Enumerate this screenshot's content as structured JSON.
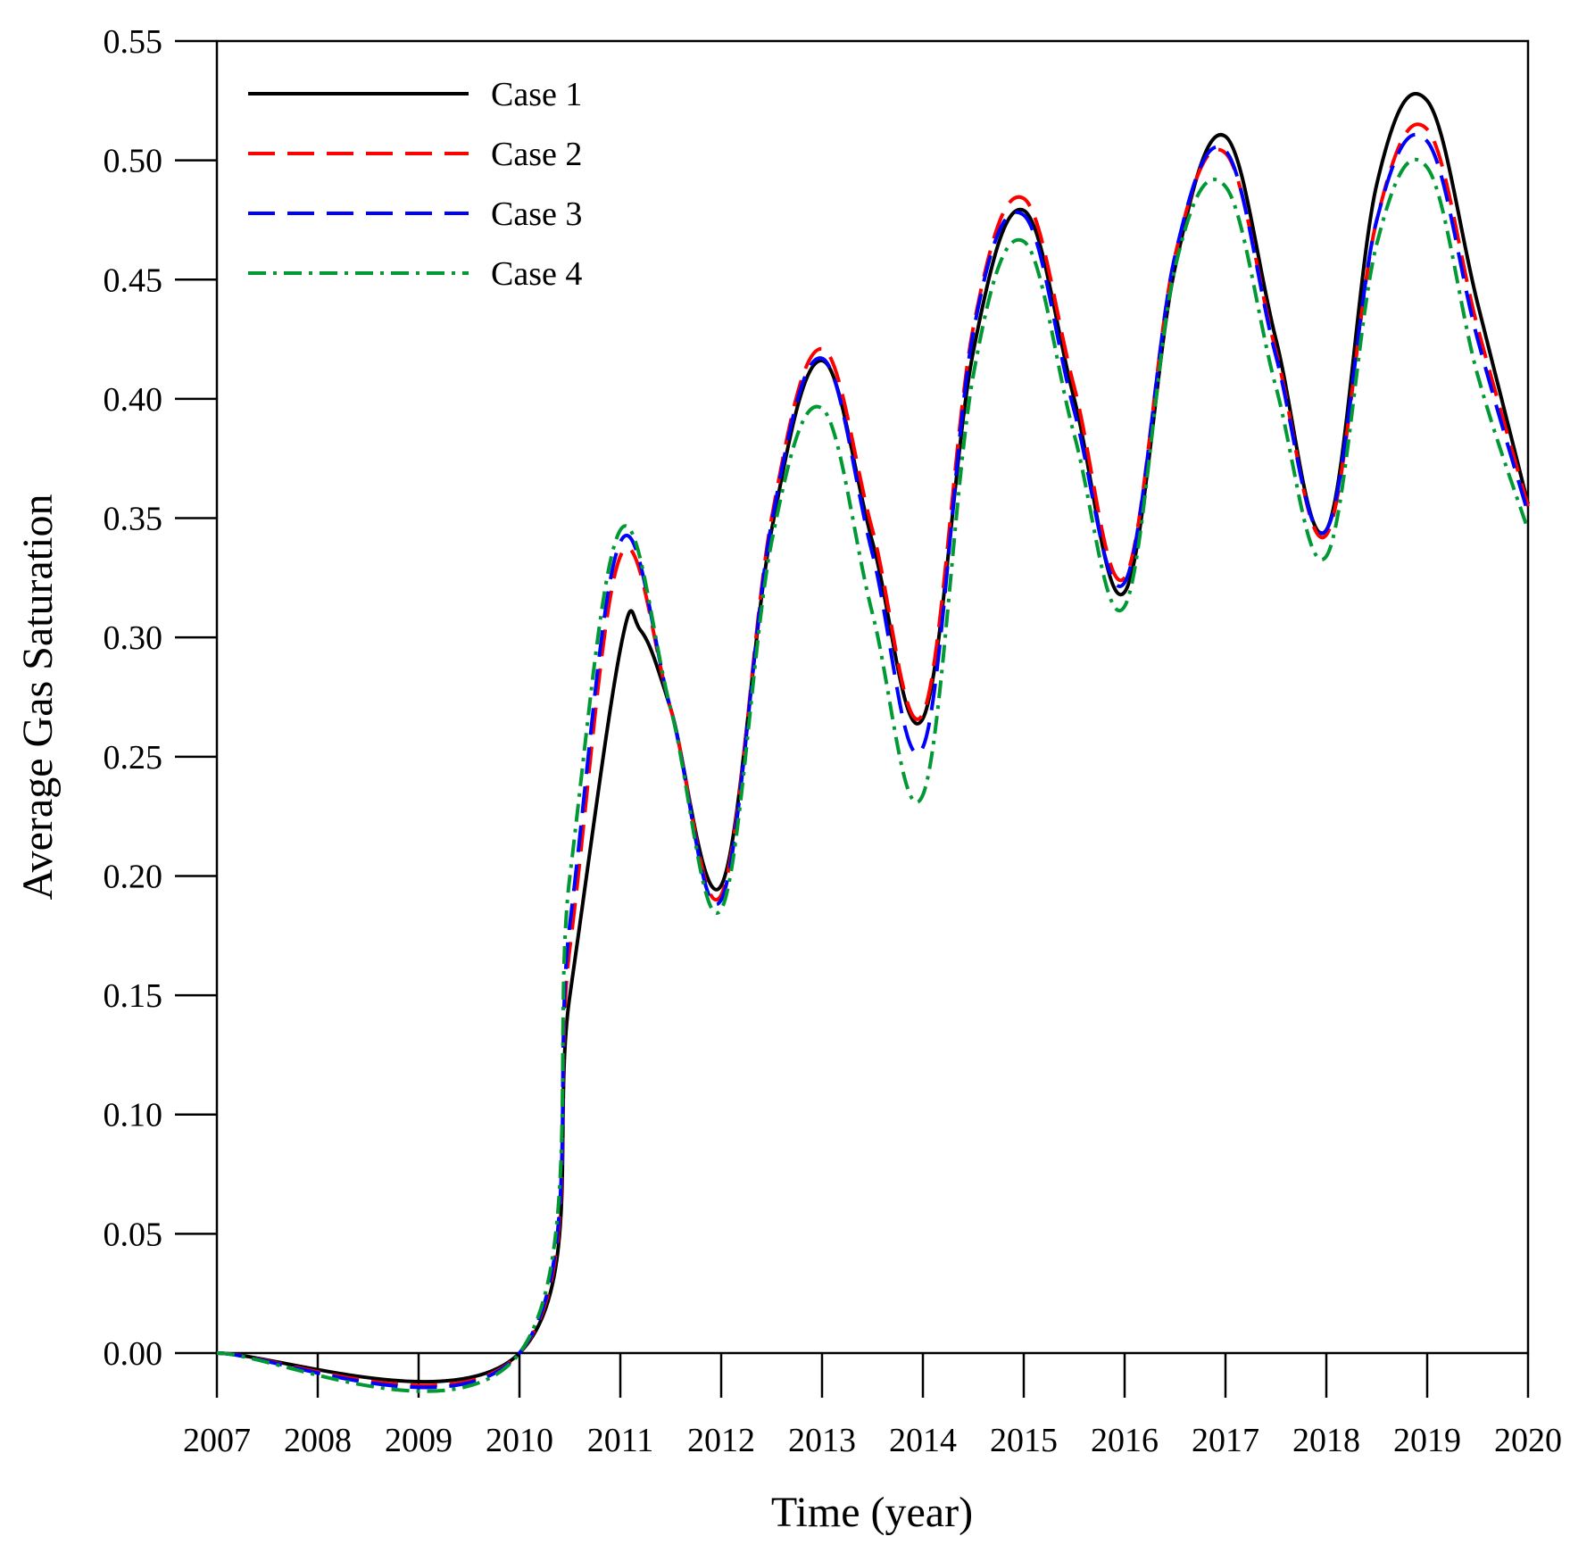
{
  "chart_data": {
    "type": "line",
    "title": "",
    "xlabel": "Time (year)",
    "ylabel": "Average Gas Saturation",
    "xlim": [
      2007,
      2020
    ],
    "ylim": [
      0,
      0.55
    ],
    "xticks": [
      "2007",
      "2008",
      "2009",
      "2010",
      "2011",
      "2012",
      "2013",
      "2014",
      "2015",
      "2016",
      "2017",
      "2018",
      "2019",
      "2020"
    ],
    "yticks": [
      "0.00",
      "0.05",
      "0.10",
      "0.15",
      "0.20",
      "0.25",
      "0.30",
      "0.35",
      "0.40",
      "0.45",
      "0.50",
      "0.55"
    ],
    "grid": false,
    "legend_position": "top-left",
    "series": [
      {
        "name": "Case 1",
        "color": "#000000",
        "dash": "solid",
        "x": [
          2007,
          2010,
          2010.5,
          2011,
          2011.2,
          2011.5,
          2012,
          2012.5,
          2013,
          2013.5,
          2014,
          2014.5,
          2015,
          2015.5,
          2016,
          2016.5,
          2017,
          2017.5,
          2018,
          2018.5,
          2019,
          2019.5,
          2020
        ],
        "y": [
          0,
          0,
          0.15,
          0.295,
          0.303,
          0.27,
          0.196,
          0.345,
          0.416,
          0.34,
          0.266,
          0.42,
          0.479,
          0.4,
          0.319,
          0.455,
          0.51,
          0.425,
          0.345,
          0.49,
          0.525,
          0.44,
          0.356
        ]
      },
      {
        "name": "Case 2",
        "color": "#ff0000",
        "dash": "long-dash",
        "x": [
          2007,
          2010,
          2010.5,
          2011,
          2011.5,
          2012,
          2012.5,
          2013,
          2013.5,
          2014,
          2014.5,
          2015,
          2015.5,
          2016,
          2016.5,
          2017,
          2017.5,
          2018,
          2018.5,
          2019,
          2019.5,
          2020
        ],
        "y": [
          0,
          0,
          0.17,
          0.334,
          0.27,
          0.192,
          0.35,
          0.421,
          0.345,
          0.268,
          0.43,
          0.484,
          0.405,
          0.325,
          0.46,
          0.503,
          0.42,
          0.343,
          0.475,
          0.513,
          0.43,
          0.355
        ]
      },
      {
        "name": "Case 3",
        "color": "#0000ff",
        "dash": "long-dash",
        "x": [
          2007,
          2010,
          2010.5,
          2011,
          2011.5,
          2012,
          2012.5,
          2013,
          2013.5,
          2014,
          2014.5,
          2015,
          2015.5,
          2016,
          2016.5,
          2017,
          2017.5,
          2018,
          2018.5,
          2019,
          2019.5,
          2020
        ],
        "y": [
          0,
          0,
          0.18,
          0.34,
          0.27,
          0.19,
          0.348,
          0.417,
          0.335,
          0.254,
          0.428,
          0.477,
          0.395,
          0.323,
          0.46,
          0.504,
          0.418,
          0.345,
          0.475,
          0.508,
          0.425,
          0.352
        ]
      },
      {
        "name": "Case 4",
        "color": "#009933",
        "dash": "dash-dot",
        "x": [
          2007,
          2010,
          2010.5,
          2011,
          2011.5,
          2012,
          2012.5,
          2013,
          2013.5,
          2014,
          2014.5,
          2015,
          2015.5,
          2016,
          2016.5,
          2017,
          2017.5,
          2018,
          2018.5,
          2019,
          2019.5,
          2020
        ],
        "y": [
          0,
          0,
          0.2,
          0.345,
          0.27,
          0.186,
          0.34,
          0.396,
          0.31,
          0.234,
          0.41,
          0.466,
          0.385,
          0.313,
          0.455,
          0.489,
          0.405,
          0.334,
          0.465,
          0.497,
          0.41,
          0.345
        ]
      }
    ]
  }
}
